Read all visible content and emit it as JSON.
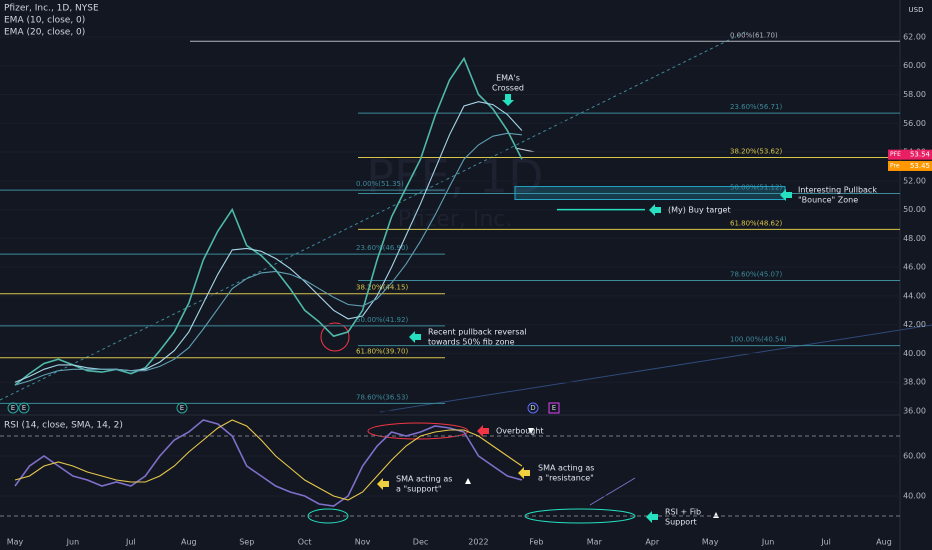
{
  "chart_data": [
    {
      "type": "line",
      "title": "Pfizer, Inc., 1D, NYSE",
      "currency": "USD",
      "watermark": [
        "PFE, 1D",
        "Pfizer, Inc."
      ],
      "categories": [
        "May",
        null,
        null,
        null,
        "Jun",
        null,
        null,
        null,
        "Jul",
        null,
        null,
        null,
        "Aug",
        null,
        null,
        null,
        "Sep",
        null,
        null,
        null,
        "Oct",
        null,
        null,
        null,
        "Nov",
        null,
        null,
        null,
        "Dec",
        null,
        null,
        null,
        "2022",
        null,
        null,
        null,
        "Feb",
        null,
        null,
        null,
        "Mar",
        null,
        null,
        null,
        "Apr",
        null,
        null,
        null,
        "May",
        null,
        null,
        null,
        "Jun",
        null,
        null,
        null,
        "Jul",
        null,
        null,
        null,
        "Aug",
        null,
        null,
        null
      ],
      "series": [
        {
          "color": "#4fb8a8",
          "values": [
            37.8,
            38.6,
            39.3,
            39.6,
            39.2,
            38.8,
            38.7,
            38.9,
            38.6,
            39.0,
            40.2,
            41.5,
            43.5,
            46.5,
            48.5,
            50.0,
            47.5,
            46.8,
            45.8,
            44.5,
            43.0,
            42.2,
            41.2,
            41.5,
            43.0,
            46.5,
            49.5,
            51.5,
            53.5,
            56.5,
            59.0,
            60.5,
            58.0,
            57.0,
            55.5,
            53.5,
            null,
            null,
            null,
            null,
            null,
            null,
            null,
            null,
            null,
            null,
            null,
            null,
            null,
            null,
            null,
            null,
            null,
            null,
            null,
            null,
            null,
            null,
            null,
            null,
            null,
            null,
            null,
            null
          ]
        },
        {
          "name": "EMA (10, close, 0)",
          "color": "#a5d6e8",
          "values": [
            38.0,
            38.4,
            38.9,
            39.2,
            39.2,
            39.0,
            38.9,
            38.9,
            38.8,
            38.9,
            39.4,
            40.2,
            41.5,
            43.5,
            45.5,
            47.2,
            47.3,
            47.1,
            46.6,
            45.9,
            45.0,
            44.0,
            43.0,
            42.4,
            42.6,
            44.0,
            46.0,
            48.2,
            50.4,
            52.8,
            55.2,
            57.2,
            57.5,
            57.3,
            56.6,
            55.5,
            null,
            null,
            null,
            null,
            null,
            null,
            null,
            null,
            null,
            null,
            null,
            null,
            null,
            null,
            null,
            null,
            null,
            null,
            null,
            null,
            null,
            null,
            null,
            null,
            null,
            null,
            null,
            null
          ]
        },
        {
          "name": "EMA (20, close, 0)",
          "color": "#5f9fb3",
          "values": [
            37.8,
            38.1,
            38.5,
            38.8,
            38.9,
            38.9,
            38.9,
            38.9,
            38.8,
            38.8,
            39.1,
            39.6,
            40.4,
            41.7,
            43.1,
            44.5,
            45.2,
            45.6,
            45.7,
            45.5,
            45.1,
            44.5,
            43.9,
            43.4,
            43.3,
            43.8,
            44.9,
            46.2,
            47.8,
            49.6,
            51.6,
            53.5,
            54.5,
            55.1,
            55.3,
            55.2,
            null,
            null,
            null,
            null,
            null,
            null,
            null,
            null,
            null,
            null,
            null,
            null,
            null,
            null,
            null,
            null,
            null,
            null,
            null,
            null,
            null,
            null,
            null,
            null,
            null,
            null,
            null,
            null
          ]
        }
      ],
      "ylim": [
        35.72,
        64.57
      ],
      "yticks": [
        {
          "value": 36,
          "label": "36.00"
        },
        {
          "value": 38,
          "label": "38.00"
        },
        {
          "value": 40,
          "label": "40.00"
        },
        {
          "value": 42,
          "label": "42.00"
        },
        {
          "value": 44,
          "label": "44.00"
        },
        {
          "value": 46,
          "label": "46.00"
        },
        {
          "value": 48,
          "label": "48.00"
        },
        {
          "value": 50,
          "label": "50.00"
        },
        {
          "value": 52,
          "label": "52.00"
        },
        {
          "value": 54,
          "label": "54.00"
        },
        {
          "value": 56,
          "label": "56.00"
        },
        {
          "value": 58,
          "label": "58.00"
        },
        {
          "value": 60,
          "label": "60.00"
        },
        {
          "value": 62,
          "label": "62.00"
        }
      ],
      "price_tags": [
        {
          "label": "PFE",
          "value": 53.54,
          "color": "#e91e63"
        },
        {
          "label": "Pre",
          "value": 53.45,
          "color": "#ff9800"
        }
      ],
      "fib_sets": [
        {
          "levels": [
            {
              "label": "0.00%(61.70)",
              "value": 61.7,
              "color": "#b2b5be"
            },
            {
              "label": "23.60%(56.71)",
              "value": 56.71,
              "color": "#3c8a9a"
            },
            {
              "label": "38.20%(53.62)",
              "value": 53.62,
              "color": "#d8c64a"
            },
            {
              "label": "50.00%(51.12)",
              "value": 51.12,
              "color": "#3c8a9a"
            },
            {
              "label": "61.80%(48.62)",
              "value": 48.62,
              "color": "#d8c64a"
            },
            {
              "label": "78.60%(45.07)",
              "value": 45.07,
              "color": "#3c8a9a"
            },
            {
              "label": "100.00%(40.54)",
              "value": 40.54,
              "color": "#3c8a9a"
            }
          ]
        },
        {
          "levels": [
            {
              "label": "0.00%(51.35)",
              "value": 51.35,
              "color": "#3c8a9a"
            },
            {
              "label": "23.60%(46.90)",
              "value": 46.9,
              "color": "#3c8a9a"
            },
            {
              "label": "38.20%(44.15)",
              "value": 44.15,
              "color": "#d8c64a"
            },
            {
              "label": "50.00%(41.92)",
              "value": 41.92,
              "color": "#3c8a9a"
            },
            {
              "label": "61.80%(39.70)",
              "value": 39.7,
              "color": "#d8c64a"
            },
            {
              "label": "78.60%(36.53)",
              "value": 36.53,
              "color": "#3c8a9a"
            }
          ]
        }
      ],
      "buy_zone": [
        50.7,
        51.6
      ],
      "buy_target": 50.0,
      "events": [
        "E",
        "E",
        "E",
        "D",
        "E"
      ],
      "annotations": [
        {
          "text": [
            "EMA's",
            "Crossed"
          ],
          "color": "#26e0c0"
        },
        {
          "text": [
            "Interesting Pullback",
            "\"Bounce\" Zone"
          ],
          "color": "#26e0c0"
        },
        {
          "text": [
            "(My) Buy target"
          ],
          "color": "#26e0c0"
        },
        {
          "text": [
            "Recent pullback reversal",
            "towards 50% fib zone"
          ],
          "color": "#26e0c0"
        },
        {
          "text": [
            "Overbought"
          ],
          "color": "#f23645"
        },
        {
          "text": [
            "SMA acting as",
            "a \"resistance\""
          ],
          "color": "#f0d040"
        },
        {
          "text": [
            "SMA acting as",
            "a \"support\""
          ],
          "color": "#f0d040"
        },
        {
          "text": [
            "RSI + Fib",
            "Support"
          ],
          "color": "#26e0c0"
        }
      ]
    },
    {
      "type": "line",
      "title": "RSI (14, close, SMA, 14, 2)",
      "series": [
        {
          "color": "#7e6fc9",
          "values": [
            45,
            55,
            60,
            55,
            50,
            48,
            45,
            47,
            45,
            50,
            60,
            68,
            72,
            78,
            76,
            70,
            55,
            50,
            45,
            42,
            40,
            36,
            35,
            40,
            55,
            65,
            72,
            70,
            72,
            75,
            74,
            72,
            60,
            55,
            50,
            48,
            null,
            null,
            null,
            null,
            null,
            null,
            null,
            null,
            null,
            null,
            null,
            null,
            null,
            null,
            null,
            null,
            null,
            null,
            null,
            null,
            null,
            null,
            null,
            null,
            null,
            null,
            null,
            null
          ]
        },
        {
          "color": "#e6c84a",
          "values": [
            48,
            50,
            55,
            57,
            55,
            52,
            50,
            48,
            47,
            47,
            50,
            55,
            62,
            68,
            74,
            78,
            75,
            68,
            60,
            54,
            48,
            44,
            40,
            38,
            42,
            50,
            58,
            65,
            70,
            72,
            73,
            73,
            70,
            65,
            60,
            55,
            null,
            null,
            null,
            null,
            null,
            null,
            null,
            null,
            null,
            null,
            null,
            null,
            null,
            null,
            null,
            null,
            null,
            null,
            null,
            null,
            null,
            null,
            null,
            null,
            null,
            null,
            null,
            null
          ]
        }
      ],
      "ylim": [
        22,
        80.5
      ],
      "yticks": [
        {
          "value": 40,
          "label": "40.00"
        },
        {
          "value": 60,
          "label": "60.00"
        }
      ],
      "hlines": [
        30,
        70
      ]
    }
  ]
}
